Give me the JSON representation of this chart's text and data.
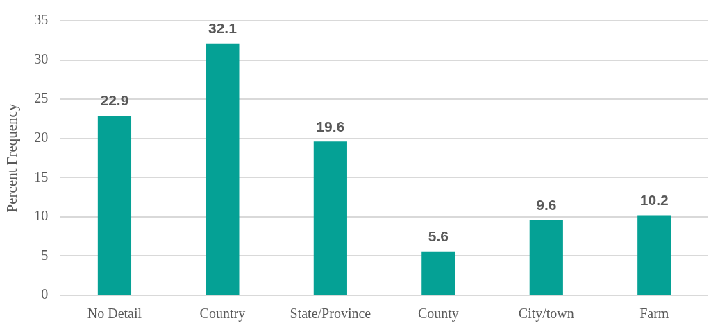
{
  "chart_data": {
    "type": "bar",
    "ylabel": "Percent Frequency",
    "categories": [
      "No Detail",
      "Country",
      "State/Province",
      "County",
      "City/town",
      "Farm"
    ],
    "values": [
      22.9,
      32.1,
      19.6,
      5.6,
      9.6,
      10.2
    ],
    "color": "#05a195",
    "ylim": [
      0,
      35
    ],
    "yticks": [
      0,
      5,
      10,
      15,
      20,
      25,
      30,
      35
    ],
    "grid": "y",
    "data_labels": true
  }
}
